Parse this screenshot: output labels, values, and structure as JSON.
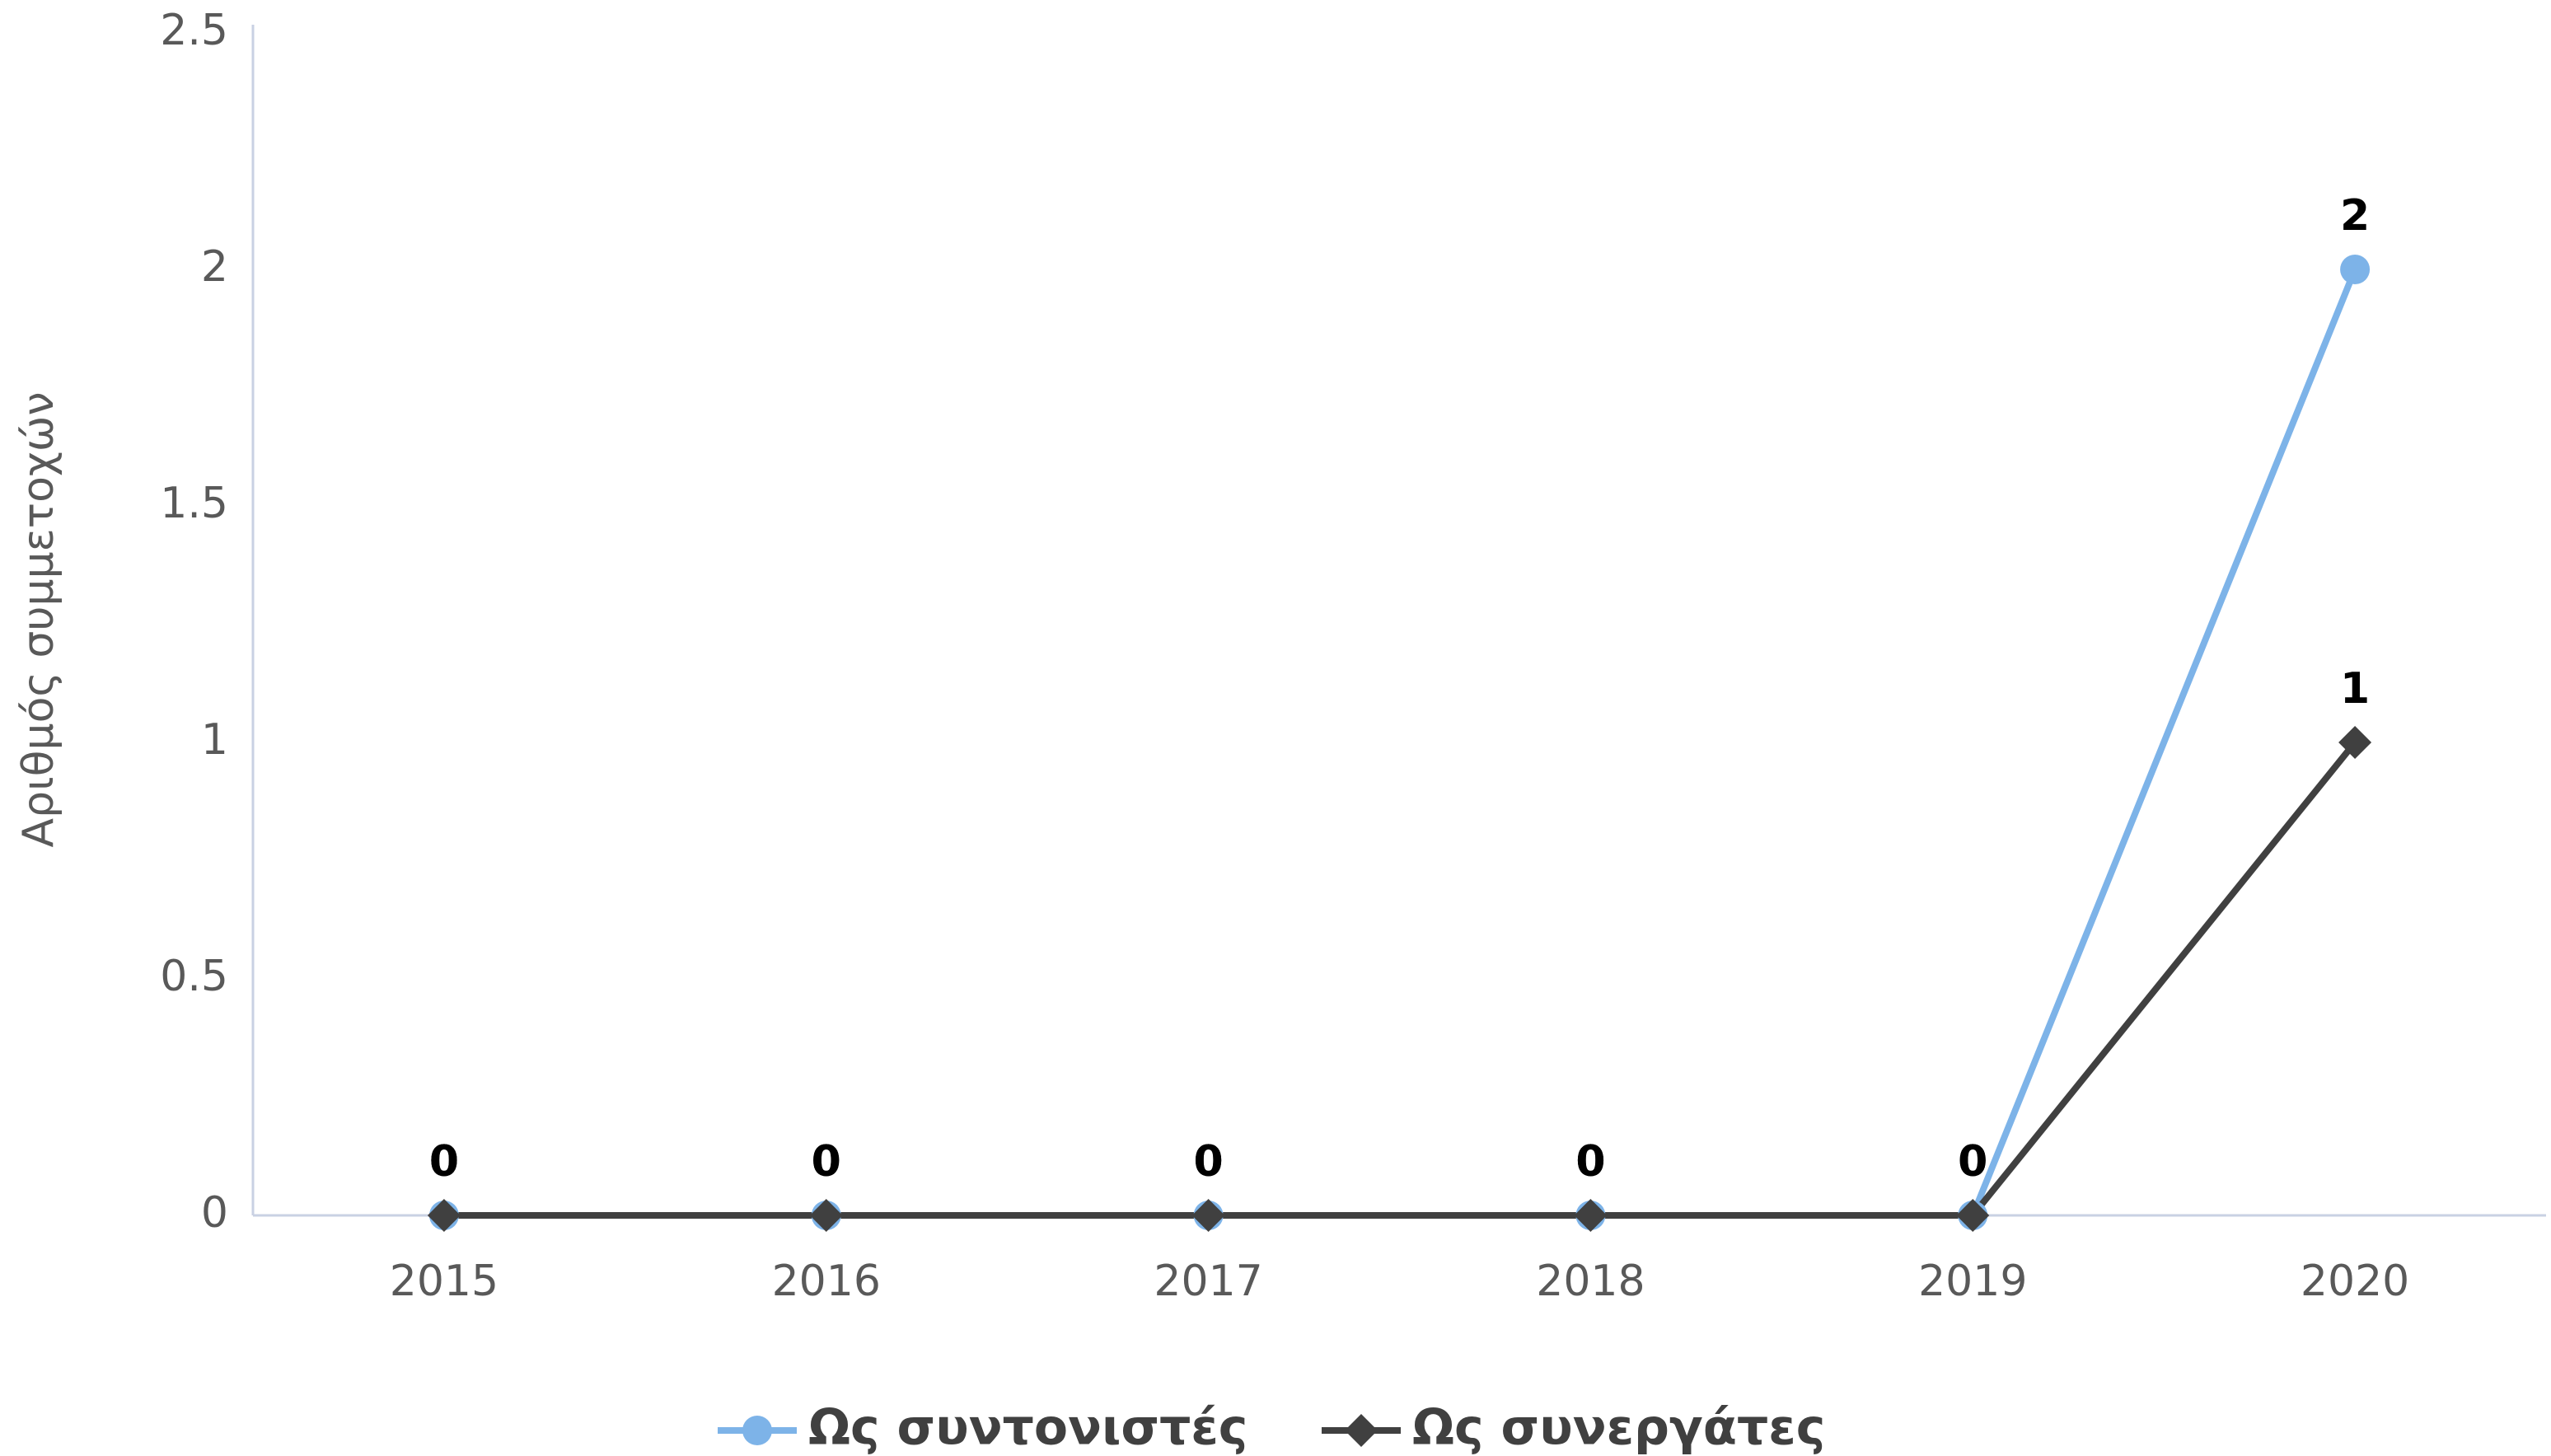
{
  "chart_data": {
    "type": "line",
    "y_axis_label": "Αριθμός συμμετοχών",
    "categories": [
      "2015",
      "2016",
      "2017",
      "2018",
      "2019",
      "2020"
    ],
    "series": [
      {
        "name": "Ως συντονιστές",
        "color": "#7db3e8",
        "marker": "circle",
        "values": [
          0,
          0,
          0,
          0,
          0,
          2
        ]
      },
      {
        "name": "Ως συνεργάτες",
        "color": "#404040",
        "marker": "diamond",
        "values": [
          0,
          0,
          0,
          0,
          0,
          1
        ]
      }
    ],
    "ylim": [
      0,
      2.5
    ],
    "yticks": [
      0,
      0.5,
      1,
      1.5,
      2,
      2.5
    ],
    "grid": false,
    "legend": "bottom"
  }
}
